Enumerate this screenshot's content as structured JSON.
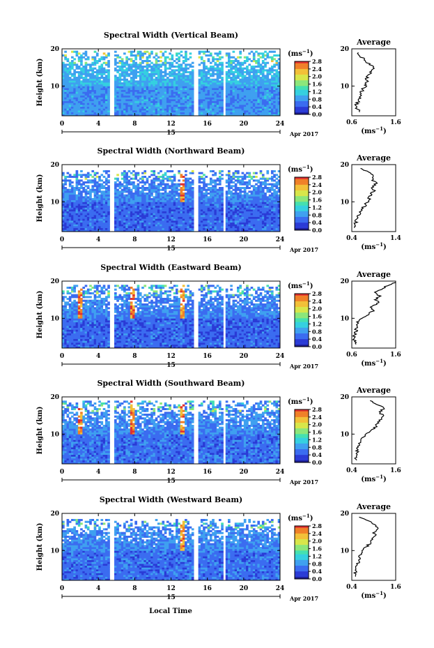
{
  "figure": {
    "date_label": "Apr 2017",
    "day_label": "15",
    "xlabel": "Local Time",
    "colorbar_unit": "(ms",
    "colorbar_unit_exp": "−1",
    "colorbar_unit_close": ")",
    "average_title": "Average",
    "average_xlabel": "(ms",
    "colormap": [
      "#1c1c8c",
      "#2a3bd6",
      "#3b6cf0",
      "#3fa0f0",
      "#35d0e0",
      "#45e0b0",
      "#8ce67a",
      "#d8e64a",
      "#f2c038",
      "#f08028",
      "#e03030"
    ],
    "background_color": "#ffffff"
  },
  "chart_data": [
    {
      "type": "heatmap",
      "title": "Spectral Width (Vertical Beam)",
      "ylabel": "Height (km)",
      "xlim": [
        0,
        24
      ],
      "ylim": [
        2,
        20
      ],
      "xticks": [
        0,
        4,
        8,
        12,
        16,
        20,
        24
      ],
      "yticks": [
        10,
        20
      ],
      "colorbar": {
        "min": 0.0,
        "max": 2.8,
        "ticks": [
          "2.8",
          "2.4",
          "2.0",
          "1.6",
          "1.2",
          "0.8",
          "0.4",
          "0.0"
        ]
      },
      "gaps": [
        [
          5.3,
          5.7
        ],
        [
          14.5,
          14.9
        ],
        [
          17.8,
          18.1
        ],
        [
          18.9,
          19.1
        ]
      ],
      "top_km": 19.5,
      "base_level": 0.55,
      "spikes": [],
      "average": {
        "xlim": [
          0.6,
          1.6
        ],
        "xticks": [
          "0.6",
          "1.6"
        ],
        "height": [
          3,
          4,
          5,
          6,
          7,
          8,
          9,
          10,
          11,
          12,
          13,
          14,
          15,
          16,
          17,
          18,
          19
        ],
        "value": [
          0.78,
          0.72,
          0.7,
          0.75,
          0.8,
          0.8,
          0.85,
          0.9,
          0.95,
          0.92,
          1.0,
          1.05,
          1.1,
          0.98,
          0.9,
          0.8,
          0.75
        ]
      }
    },
    {
      "type": "heatmap",
      "title": "Spectral Width (Northward Beam)",
      "ylabel": "Height (km)",
      "xlim": [
        0,
        24
      ],
      "ylim": [
        2,
        20
      ],
      "xticks": [
        0,
        4,
        8,
        12,
        16,
        20,
        24
      ],
      "yticks": [
        10,
        20
      ],
      "colorbar": {
        "min": 0.0,
        "max": 2.8,
        "ticks": [
          "2.8",
          "2.4",
          "2.0",
          "1.6",
          "1.2",
          "0.8",
          "0.4",
          "0.0"
        ]
      },
      "gaps": [
        [
          5.3,
          5.7
        ],
        [
          14.5,
          14.9
        ],
        [
          17.8,
          18.1
        ],
        [
          18.9,
          19.1
        ]
      ],
      "top_km": 18.5,
      "base_level": 0.3,
      "spikes": [
        13.2
      ],
      "average": {
        "xlim": [
          0.4,
          1.4
        ],
        "xticks": [
          "0.4",
          "1.4"
        ],
        "height": [
          3,
          4,
          5,
          6,
          7,
          8,
          9,
          10,
          11,
          12,
          13,
          14,
          15,
          16,
          17,
          18,
          19
        ],
        "value": [
          0.5,
          0.48,
          0.5,
          0.55,
          0.6,
          0.62,
          0.7,
          0.75,
          0.8,
          0.85,
          0.9,
          0.88,
          0.95,
          0.85,
          0.9,
          0.8,
          0.6
        ]
      }
    },
    {
      "type": "heatmap",
      "title": "Spectral Width (Eastward Beam)",
      "ylabel": "Height (km)",
      "xlim": [
        0,
        24
      ],
      "ylim": [
        2,
        20
      ],
      "xticks": [
        0,
        4,
        8,
        12,
        16,
        20,
        24
      ],
      "yticks": [
        10,
        20
      ],
      "colorbar": {
        "min": 0.0,
        "max": 2.8,
        "ticks": [
          "2.8",
          "2.4",
          "2.0",
          "1.6",
          "1.2",
          "0.8",
          "0.4",
          "0.0"
        ]
      },
      "gaps": [
        [
          5.3,
          5.7
        ],
        [
          14.5,
          14.9
        ],
        [
          17.8,
          18.1
        ],
        [
          18.9,
          19.1
        ]
      ],
      "top_km": 19.0,
      "base_level": 0.3,
      "spikes": [
        2.0,
        7.7,
        13.2
      ],
      "average": {
        "xlim": [
          0.6,
          1.6
        ],
        "xticks": [
          "0.6",
          "1.6"
        ],
        "height": [
          3,
          4,
          5,
          6,
          7,
          8,
          9,
          10,
          11,
          12,
          13,
          14,
          15,
          16,
          17,
          18,
          19,
          19.8
        ],
        "value": [
          0.68,
          0.66,
          0.66,
          0.68,
          0.7,
          0.72,
          0.75,
          0.8,
          0.95,
          1.1,
          1.05,
          1.2,
          1.15,
          1.25,
          1.1,
          1.3,
          1.45,
          1.6
        ]
      }
    },
    {
      "type": "heatmap",
      "title": "Spectral Width (Southward Beam)",
      "ylabel": "Height (km)",
      "xlim": [
        0,
        24
      ],
      "ylim": [
        2,
        20
      ],
      "xticks": [
        0,
        4,
        8,
        12,
        16,
        20,
        24
      ],
      "yticks": [
        10,
        20
      ],
      "colorbar": {
        "min": 0.0,
        "max": 2.8,
        "ticks": [
          "2.8",
          "2.4",
          "2.0",
          "1.6",
          "1.2",
          "0.8",
          "0.4",
          "0.0"
        ]
      },
      "gaps": [
        [
          5.3,
          5.7
        ],
        [
          14.5,
          14.9
        ],
        [
          17.8,
          18.1
        ],
        [
          18.9,
          19.1
        ]
      ],
      "top_km": 19.0,
      "base_level": 0.35,
      "spikes": [
        2.0,
        7.7,
        13.2
      ],
      "average": {
        "xlim": [
          0.4,
          1.6
        ],
        "xticks": [
          "0.4",
          "1.6"
        ],
        "height": [
          3,
          4,
          5,
          6,
          7,
          8,
          9,
          10,
          11,
          12,
          13,
          14,
          15,
          16,
          17,
          18,
          19
        ],
        "value": [
          0.52,
          0.5,
          0.55,
          0.55,
          0.6,
          0.62,
          0.7,
          0.78,
          0.95,
          1.05,
          1.1,
          1.2,
          1.25,
          1.15,
          1.3,
          1.1,
          0.9
        ]
      }
    },
    {
      "type": "heatmap",
      "title": "Spectral Width (Westward Beam)",
      "ylabel": "Height (km)",
      "xlim": [
        0,
        24
      ],
      "ylim": [
        2,
        20
      ],
      "xticks": [
        0,
        4,
        8,
        12,
        16,
        20,
        24
      ],
      "yticks": [
        10,
        20
      ],
      "colorbar": {
        "min": 0.0,
        "max": 2.8,
        "ticks": [
          "2.8",
          "2.4",
          "2.0",
          "1.6",
          "1.2",
          "0.8",
          "0.4",
          "0.0"
        ]
      },
      "gaps": [
        [
          5.3,
          5.7
        ],
        [
          14.5,
          14.9
        ],
        [
          17.8,
          18.1
        ],
        [
          18.9,
          19.1
        ]
      ],
      "top_km": 18.5,
      "base_level": 0.35,
      "spikes": [
        13.2
      ],
      "average": {
        "xlim": [
          0.4,
          1.6
        ],
        "xticks": [
          "0.4",
          "1.6"
        ],
        "height": [
          3,
          4,
          5,
          6,
          7,
          8,
          9,
          10,
          11,
          12,
          13,
          14,
          15,
          16,
          17,
          18,
          19
        ],
        "value": [
          0.5,
          0.5,
          0.52,
          0.55,
          0.58,
          0.6,
          0.65,
          0.7,
          0.8,
          0.9,
          0.95,
          1.05,
          1.0,
          1.15,
          1.0,
          0.85,
          0.6
        ]
      }
    }
  ]
}
